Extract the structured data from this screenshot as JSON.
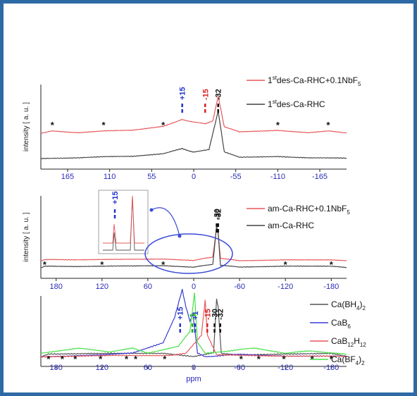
{
  "chart_data": [
    {
      "type": "line",
      "panel": "top",
      "xlabel": "",
      "ylabel": "intensity [ a. u. ]",
      "xlim": [
        200,
        -200
      ],
      "xticks": [
        "165",
        "110",
        "55",
        "0",
        "-55",
        "-110",
        "-165"
      ],
      "legend": [
        {
          "prefix": "1",
          "sup": "st",
          "main": "des-Ca-RHC+0.1NbF",
          "sub": "5",
          "color": "#e8575a"
        },
        {
          "prefix": "1",
          "sup": "st",
          "main": "des-Ca-RHC",
          "sub": "",
          "color": "#444444"
        }
      ],
      "annotations": [
        {
          "label": "+15",
          "x": 15,
          "color": "#2233cc"
        },
        {
          "label": "-15",
          "x": -15,
          "color": "#d62020"
        },
        {
          "label": "-32",
          "x": -32,
          "color": "#111111"
        }
      ],
      "stars": [
        185,
        118,
        40,
        -110,
        -176
      ],
      "series": [
        {
          "name": "1st des-Ca-RHC+0.1NbF5",
          "color": "#e8575a",
          "x": [
            200,
            185,
            150,
            118,
            80,
            40,
            20,
            15,
            0,
            -15,
            -25,
            -32,
            -40,
            -60,
            -110,
            -150,
            -176,
            -200
          ],
          "y": [
            0.05,
            0.1,
            0.06,
            0.1,
            0.12,
            0.22,
            0.35,
            0.38,
            0.32,
            0.28,
            0.35,
            0.95,
            0.2,
            0.08,
            0.12,
            0.06,
            0.1,
            0.05
          ]
        },
        {
          "name": "1st des-Ca-RHC",
          "color": "#444444",
          "x": [
            200,
            150,
            118,
            80,
            40,
            15,
            0,
            -20,
            -32,
            -40,
            -60,
            -110,
            -150,
            -200
          ],
          "y": [
            0.02,
            0.03,
            0.05,
            0.06,
            0.12,
            0.22,
            0.15,
            0.2,
            1.0,
            0.15,
            0.04,
            0.06,
            0.03,
            0.02
          ]
        }
      ]
    },
    {
      "type": "line",
      "panel": "middle",
      "xlabel": "",
      "ylabel": "intensity [ a. u. ]",
      "xlim": [
        200,
        -200
      ],
      "xticks": [
        "180",
        "120",
        "60",
        "0",
        "-60",
        "-120",
        "-180"
      ],
      "legend": [
        {
          "prefix": "",
          "sup": "",
          "main": "am-Ca-RHC+0.1NbF",
          "sub": "5",
          "color": "#e8575a"
        },
        {
          "prefix": "",
          "sup": "",
          "main": "am-Ca-RHC",
          "sub": "",
          "color": "#444444"
        }
      ],
      "annotations": [
        {
          "label": "-30",
          "x": -30,
          "color": "#111111"
        },
        {
          "label": "-32",
          "x": -32,
          "color": "#111111"
        }
      ],
      "inset_annotation": "+15",
      "stars": [
        195,
        120,
        40,
        -120,
        -180
      ],
      "series": [
        {
          "name": "am-Ca-RHC+0.1NbF5",
          "color": "#e8575a",
          "x": [
            200,
            195,
            120,
            40,
            0,
            -25,
            -30,
            -32,
            -35,
            -60,
            -120,
            -180,
            -200
          ],
          "y": [
            0.05,
            0.08,
            0.08,
            0.1,
            0.06,
            0.15,
            0.9,
            0.75,
            0.12,
            0.05,
            0.08,
            0.07,
            0.05
          ]
        },
        {
          "name": "am-Ca-RHC",
          "color": "#444444",
          "x": [
            200,
            195,
            120,
            40,
            0,
            -25,
            -30,
            -32,
            -35,
            -60,
            -120,
            -180,
            -200
          ],
          "y": [
            0.02,
            0.05,
            0.05,
            0.07,
            0.03,
            0.1,
            1.0,
            0.85,
            0.08,
            0.03,
            0.06,
            0.05,
            0.02
          ]
        }
      ]
    },
    {
      "type": "line",
      "panel": "bottom",
      "xlabel": "ppm",
      "ylabel": "",
      "xlim": [
        200,
        -200
      ],
      "xticks": [
        "180",
        "120",
        "60",
        "0",
        "-60",
        "-120",
        "-180"
      ],
      "legend": [
        {
          "prefix": "",
          "sup": "",
          "main": "Ca(BH",
          "sub": "4",
          "tail": ")",
          "sub2": "2",
          "color": "#555555"
        },
        {
          "prefix": "",
          "sup": "",
          "main": "CaB",
          "sub": "6",
          "tail": "",
          "sub2": "",
          "color": "#3b3bd4"
        },
        {
          "prefix": "",
          "sup": "",
          "main": "CaB",
          "sub": "12",
          "tail": "H",
          "sub2": "12",
          "color": "#e8575a"
        },
        {
          "prefix": "",
          "sup": "",
          "main": "Ca(BF",
          "sub": "4",
          "tail": ")",
          "sub2": "2",
          "color": "#47e047"
        }
      ],
      "annotations": [
        {
          "label": "+15",
          "x": 15,
          "color": "#2233cc"
        },
        {
          "label": "+1",
          "x": 1,
          "color": "#2233cc"
        },
        {
          "label": "-1",
          "x": -1,
          "color": "#22aa22"
        },
        {
          "label": "-15",
          "x": -15,
          "color": "#d62020"
        },
        {
          "label": "-30",
          "x": -30,
          "color": "#111111"
        },
        {
          "label": "-32",
          "x": -32,
          "color": "#111111"
        }
      ],
      "stars": [
        190,
        172,
        155,
        122,
        88,
        76,
        38,
        -62,
        -85,
        -118,
        -155,
        -180
      ],
      "series": [
        {
          "name": "Ca(BH4)2",
          "color": "#555555",
          "x": [
            200,
            190,
            120,
            40,
            0,
            -26,
            -30,
            -32,
            -36,
            -60,
            -120,
            -180,
            -200
          ],
          "y": [
            0.0,
            0.04,
            0.04,
            0.05,
            0.0,
            0.05,
            0.82,
            0.7,
            0.04,
            0.02,
            0.04,
            0.04,
            0.0
          ]
        },
        {
          "name": "CaB6",
          "color": "#3b3bd4",
          "x": [
            200,
            120,
            80,
            40,
            25,
            15,
            10,
            5,
            1,
            -5,
            -15,
            -60,
            -120,
            -200
          ],
          "y": [
            0.0,
            0.02,
            0.05,
            0.2,
            0.55,
            0.95,
            0.7,
            0.5,
            0.6,
            0.05,
            0.0,
            0.03,
            0.01,
            0.0
          ]
        },
        {
          "name": "CaB12H12",
          "color": "#e8575a",
          "x": [
            200,
            30,
            10,
            -10,
            -15,
            -18,
            -30,
            -200
          ],
          "y": [
            0.0,
            0.02,
            0.05,
            0.3,
            0.8,
            0.3,
            0.02,
            0.0
          ]
        },
        {
          "name": "Ca(BF4)2",
          "color": "#47e047",
          "x": [
            200,
            150,
            110,
            80,
            60,
            20,
            5,
            -1,
            -5,
            -15,
            -45,
            -80,
            -120,
            -155,
            -200
          ],
          "y": [
            0.05,
            0.12,
            0.06,
            0.12,
            0.05,
            0.15,
            0.35,
            0.9,
            0.2,
            0.05,
            0.08,
            0.12,
            0.05,
            0.08,
            0.03
          ]
        }
      ]
    }
  ]
}
